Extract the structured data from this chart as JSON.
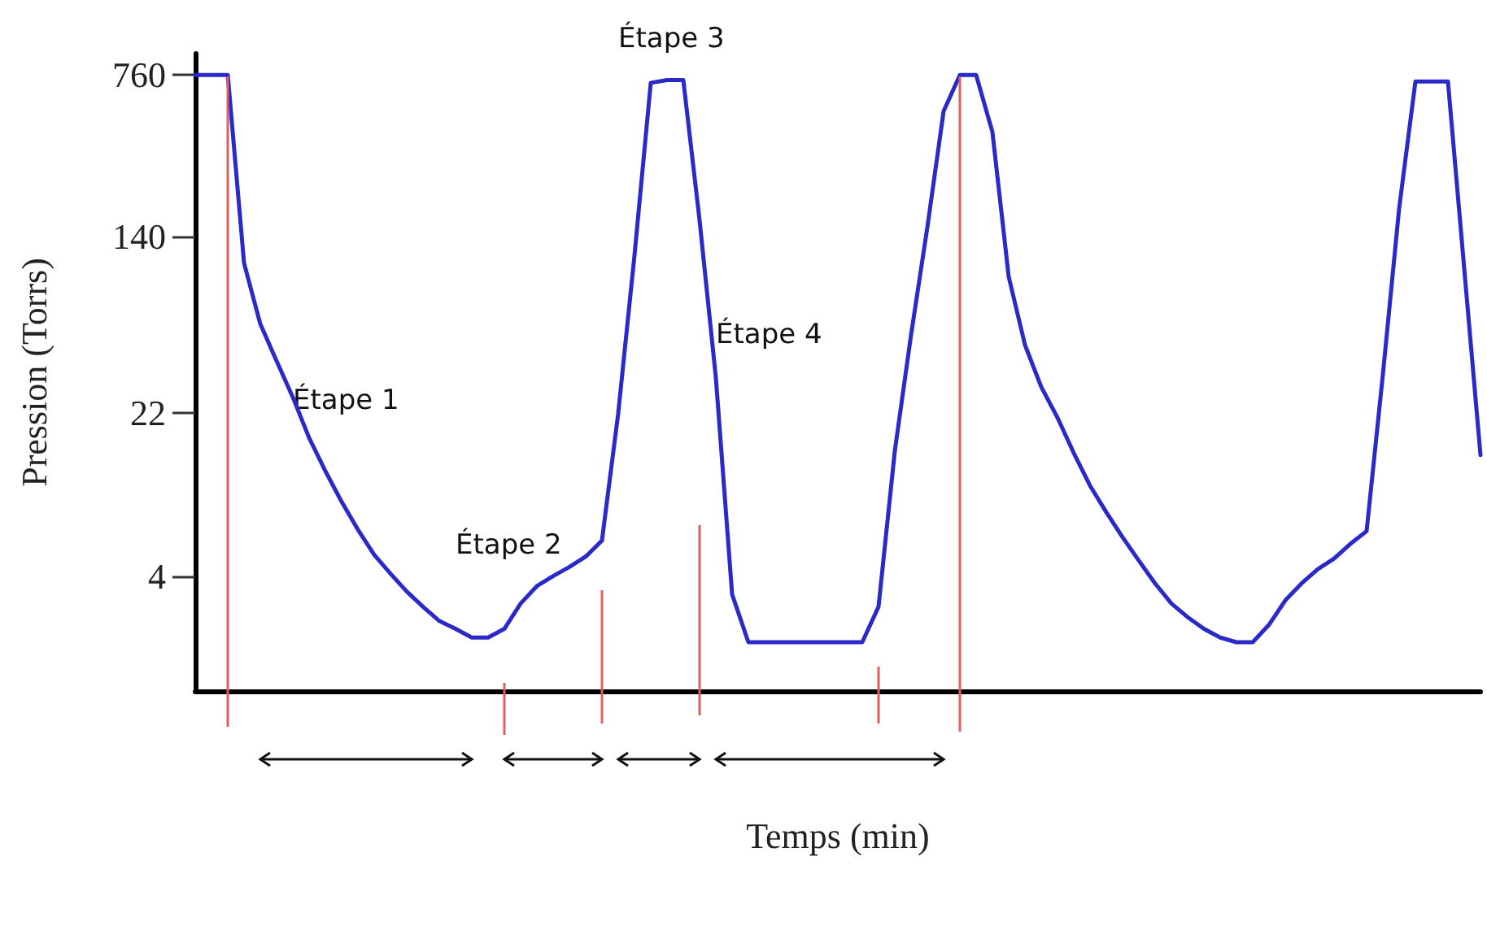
{
  "chart_data": {
    "type": "line",
    "xlabel": "Temps (min)",
    "ylabel": "Pression (Torrs)",
    "categories": [
      null,
      null,
      null,
      null,
      null,
      null,
      null,
      null,
      null,
      null,
      null,
      null,
      null,
      null,
      null,
      null,
      null,
      null,
      null,
      null,
      null,
      null,
      null,
      null,
      null,
      null,
      null,
      null,
      null,
      null,
      null,
      null,
      null,
      null,
      null,
      null,
      null,
      null,
      null,
      null,
      null,
      null,
      null,
      null,
      null,
      null,
      null,
      null,
      null,
      null,
      null,
      null,
      null,
      null,
      null,
      null,
      null,
      null,
      null,
      null,
      null,
      null,
      null,
      null,
      null,
      null,
      null,
      null,
      null,
      null,
      null,
      null,
      null,
      null,
      null,
      null,
      null,
      null,
      null,
      null
    ],
    "series": [
      {
        "color": "#2a2ac8",
        "values": [
          760,
          760,
          760,
          106,
          56,
          38,
          26,
          17,
          12,
          8.7,
          6.5,
          5.0,
          4.1,
          3.4,
          2.9,
          2.5,
          2.3,
          2.1,
          2.1,
          2.3,
          3.0,
          3.6,
          4.0,
          4.4,
          4.9,
          5.8,
          22,
          115,
          700,
          720,
          720,
          166,
          32,
          3.3,
          2.0,
          2.0,
          2.0,
          2.0,
          2.0,
          2.0,
          2.0,
          2.0,
          2.9,
          14.8,
          50,
          154,
          520,
          760,
          760,
          418,
          92,
          45,
          29,
          21,
          14.5,
          10.3,
          7.8,
          6.0,
          4.7,
          3.7,
          3.0,
          2.6,
          2.3,
          2.1,
          2.0,
          2.0,
          2.4,
          3.1,
          3.7,
          4.3,
          4.8,
          5.6,
          6.4,
          33,
          188,
          710,
          710,
          710,
          100,
          14.2
        ]
      }
    ],
    "log": "y",
    "ylim": [
      1.2,
      950
    ],
    "yticks": [
      4,
      22,
      140,
      760
    ],
    "tick_labels": "y",
    "grid": false,
    "marker": "none",
    "line_style": "solid",
    "annotations": [
      "Étape 1",
      "Étape 2",
      "Étape 3",
      "Étape 4"
    ]
  }
}
